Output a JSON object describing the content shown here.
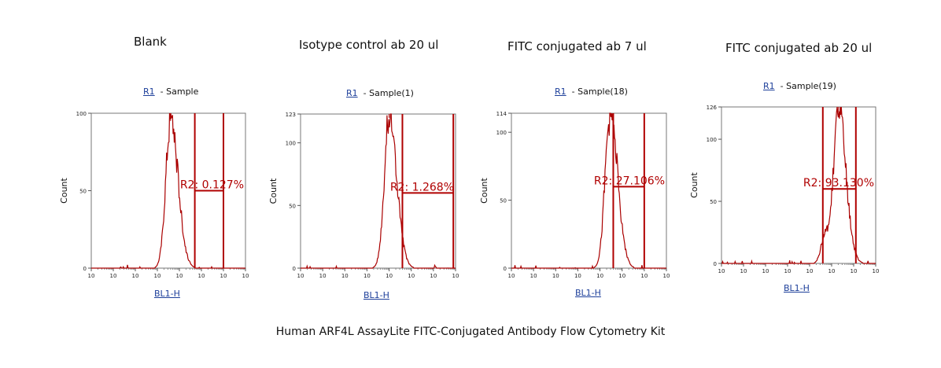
{
  "caption": "Human ARF4L AssayLite FITC-Conjugated Antibody Flow Cytometry Kit",
  "colors": {
    "histogram": "#aa0000",
    "gate": "#b00000",
    "gate_label": "#b00000",
    "link": "#1d3f9a"
  },
  "chart_data": [
    {
      "type": "histogram",
      "title": "Blank",
      "gate_name": "R1",
      "sample": "Sample",
      "xlabel": "BL1-H",
      "ylabel": "Count",
      "xscale": "log",
      "xlim": [
        0,
        7
      ],
      "ylim": [
        0,
        100
      ],
      "yticks": [
        "0",
        "50",
        "100"
      ],
      "xticks": [
        "10",
        "10",
        "10",
        "10",
        "10",
        "10",
        "10",
        "10"
      ],
      "gate": {
        "name": "R2",
        "percent": "0.127%",
        "x_start": 4.7,
        "x_end": 6.0,
        "level": 50
      },
      "gate_label": "R2: 0.127%",
      "peak_log": 3.6,
      "peak_count": 95
    },
    {
      "type": "histogram",
      "title": "Isotype control ab 20 ul",
      "gate_name": "R1",
      "sample": "Sample(1)",
      "xlabel": "BL1-H",
      "ylabel": "Count",
      "xscale": "log",
      "xlim": [
        0,
        7
      ],
      "ylim": [
        0,
        123
      ],
      "yticks": [
        "0",
        "50",
        "100",
        "123"
      ],
      "xticks": [
        "10",
        "10",
        "10",
        "10",
        "10",
        "10",
        "10",
        "10"
      ],
      "gate": {
        "name": "R2",
        "percent": "1.268%",
        "x_start": 4.6,
        "x_end": 6.9,
        "level": 60
      },
      "gate_label": "R2: 1.268%",
      "peak_log": 4.0,
      "peak_count": 120
    },
    {
      "type": "histogram",
      "title": "FITC conjugated ab 7 ul",
      "gate_name": "R1",
      "sample": "Sample(18)",
      "xlabel": "BL1-H",
      "ylabel": "Count",
      "xscale": "log",
      "xlim": [
        0,
        7
      ],
      "ylim": [
        0,
        114
      ],
      "yticks": [
        "0",
        "50",
        "100",
        "114"
      ],
      "xticks": [
        "10",
        "10",
        "10",
        "10",
        "10",
        "10",
        "10",
        "10"
      ],
      "gate": {
        "name": "R2",
        "percent": "27.106%",
        "x_start": 4.6,
        "x_end": 6.0,
        "level": 60
      },
      "gate_label": "R2: 27.106%",
      "peak_log": 4.45,
      "peak_count": 112
    },
    {
      "type": "histogram",
      "title": "FITC conjugated ab 20 ul",
      "gate_name": "R1",
      "sample": "Sample(19)",
      "xlabel": "BL1-H",
      "ylabel": "Count",
      "xscale": "log",
      "xlim": [
        0,
        7
      ],
      "ylim": [
        0,
        126
      ],
      "yticks": [
        "0",
        "50",
        "100",
        "126"
      ],
      "xticks": [
        "10",
        "10",
        "10",
        "10",
        "10",
        "10",
        "10",
        "10"
      ],
      "gate": {
        "name": "R2",
        "percent": "93.130%",
        "x_start": 4.6,
        "x_end": 6.1,
        "level": 60
      },
      "gate_label": "R2: 93.130%",
      "peak_log": 5.3,
      "peak_count": 122
    }
  ]
}
